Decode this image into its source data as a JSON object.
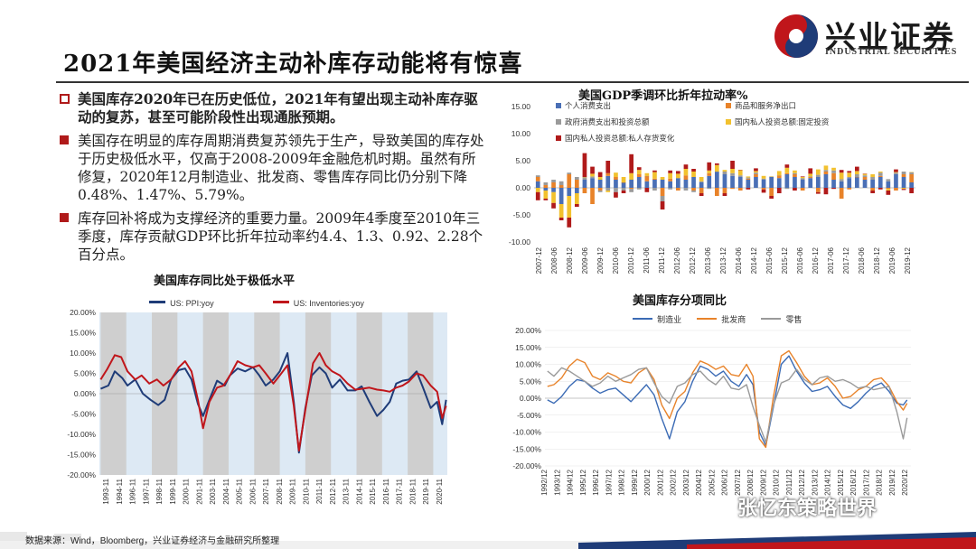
{
  "header": {
    "title": "2021年美国经济主动补库存动能将有惊喜",
    "logo_cn": "兴业证券",
    "logo_en": "INDUSTRIAL SECURITIES"
  },
  "bullets": [
    {
      "text": "美国库存2020年已在历史低位，2021年有望出现主动补库存驱动的复苏，甚至可能阶段性出现通胀预期。"
    },
    {
      "text": "美国存在明显的库存周期消费复苏领先于生产，导致美国的库存处于历史极低水平，仅高于2008-2009年金融危机时期。虽然有所修复，2020年12月制造业、批发商、零售库存同比仍分别下降0.48%、1.47%、5.79%。"
    },
    {
      "text": "库存回补将成为支撑经济的重要力量。2009年4季度至2010年三季度，库存贡献GDP环比折年拉动率约4.4、1.3、0.92、2.28个百分点。"
    }
  ],
  "colors": {
    "accent": "#b01a1a",
    "navy": "#1f3c78",
    "red": "#c0161b"
  },
  "chart_data": [
    {
      "type": "line",
      "title": "美国库存同比处于极低水平",
      "legend": [
        "US: PPI:yoy",
        "US: Inventories:yoy"
      ],
      "y_ticks": [
        "20.00%",
        "15.00%",
        "10.00%",
        "5.00%",
        "0.00%",
        "-5.00%",
        "-10.00%",
        "-15.00%",
        "-20.00%"
      ],
      "ylim": [
        -20,
        20
      ],
      "x_ticks": [
        "1993-11",
        "1994-11",
        "1996-11",
        "1997-11",
        "1998-11",
        "1999-11",
        "2000-11",
        "2001-11",
        "2003-11",
        "2004-11",
        "2005-11",
        "2006-11",
        "2007-11",
        "2008-11",
        "2009-11",
        "2010-11",
        "2011-11",
        "2012-11",
        "2013-11",
        "2014-11",
        "2015-11",
        "2016-11",
        "2017-11",
        "2018-11",
        "2019-11",
        "2020-11"
      ],
      "shaded_periods": [
        [
          1993.9,
          1995.9
        ],
        [
          1997.9,
          1999.9
        ],
        [
          2001.9,
          2003.9
        ],
        [
          2005.9,
          2007.9
        ],
        [
          2009.9,
          2011.9
        ],
        [
          2013.9,
          2015.9
        ],
        [
          2017.9,
          2019.9
        ]
      ],
      "series": [
        {
          "name": "US: PPI:yoy",
          "color": "#1f3c78",
          "x": [
            1993.9,
            1994.5,
            1995.0,
            1995.6,
            1996.0,
            1996.6,
            1997.2,
            1997.8,
            1998.4,
            1998.9,
            1999.4,
            2000.0,
            2000.5,
            2001.0,
            2001.5,
            2001.9,
            2002.4,
            2003.0,
            2003.6,
            2004.0,
            2004.6,
            2005.2,
            2005.8,
            2006.3,
            2006.8,
            2007.4,
            2007.9,
            2008.5,
            2009.0,
            2009.4,
            2009.9,
            2010.4,
            2011.0,
            2011.5,
            2012.0,
            2012.6,
            2013.2,
            2013.8,
            2014.3,
            2014.9,
            2015.5,
            2016.0,
            2016.5,
            2017.0,
            2017.5,
            2018.0,
            2018.6,
            2019.1,
            2019.7,
            2020.2,
            2020.6,
            2020.9
          ],
          "y": [
            1.2,
            2.0,
            5.5,
            3.8,
            2.0,
            3.5,
            0.0,
            -1.5,
            -2.8,
            -1.5,
            3.5,
            5.8,
            6.2,
            3.5,
            -2.5,
            -5.5,
            -1.5,
            3.2,
            2.0,
            4.5,
            6.2,
            5.5,
            6.5,
            4.5,
            2.0,
            3.5,
            5.5,
            10.0,
            -2.0,
            -14.5,
            -3.5,
            4.5,
            6.5,
            5.0,
            1.5,
            3.5,
            0.8,
            0.8,
            1.8,
            -2.0,
            -5.5,
            -4.0,
            -2.0,
            2.5,
            3.2,
            3.5,
            5.5,
            1.5,
            -3.5,
            -2.0,
            -7.5,
            -1.5
          ]
        },
        {
          "name": "US: Inventories:yoy",
          "color": "#c0161b",
          "x": [
            1993.9,
            1994.4,
            1995.0,
            1995.5,
            1996.0,
            1996.6,
            1997.1,
            1997.7,
            1998.3,
            1998.8,
            1999.4,
            2000.0,
            2000.5,
            2001.0,
            2001.5,
            2001.9,
            2002.4,
            2003.0,
            2003.5,
            2004.0,
            2004.6,
            2005.2,
            2005.8,
            2006.3,
            2006.8,
            2007.4,
            2007.9,
            2008.5,
            2009.0,
            2009.4,
            2009.9,
            2010.5,
            2011.0,
            2011.5,
            2012.0,
            2012.6,
            2013.2,
            2013.8,
            2014.3,
            2014.9,
            2015.5,
            2016.0,
            2016.5,
            2017.0,
            2017.5,
            2018.0,
            2018.6,
            2019.1,
            2019.7,
            2020.2,
            2020.6,
            2020.9
          ],
          "y": [
            3.5,
            6.0,
            9.5,
            9.0,
            5.5,
            3.5,
            4.5,
            2.5,
            3.5,
            2.0,
            3.5,
            6.5,
            8.0,
            5.5,
            -1.5,
            -8.5,
            -2.0,
            1.5,
            2.0,
            4.5,
            8.0,
            7.0,
            6.5,
            7.0,
            5.0,
            2.5,
            4.5,
            7.0,
            -3.0,
            -14.0,
            -4.0,
            7.5,
            10.0,
            7.0,
            5.5,
            4.5,
            2.5,
            1.0,
            1.2,
            1.5,
            1.0,
            0.8,
            0.5,
            1.5,
            2.0,
            3.0,
            5.0,
            4.5,
            2.0,
            0.5,
            -6.0,
            -3.0
          ]
        }
      ]
    },
    {
      "type": "bar",
      "title": "美国GDP季调环比折年拉动率%",
      "legend": [
        "个人消费支出",
        "商品和服务净出口",
        "政府消费支出和投资总额",
        "国内私人投资总额:固定投资",
        "国内私人投资总额:私人存货变化"
      ],
      "y_ticks": [
        "15.00",
        "10.00",
        "5.00",
        "0.00",
        "-5.00",
        "-10.00"
      ],
      "ylim": [
        -10,
        15
      ],
      "x_ticks": [
        "2007-12",
        "2008-06",
        "2008-12",
        "2009-06",
        "2009-12",
        "2010-06",
        "2010-12",
        "2011-06",
        "2011-12",
        "2012-06",
        "2012-12",
        "2013-06",
        "2013-12",
        "2014-06",
        "2014-12",
        "2015-06",
        "2015-12",
        "2016-06",
        "2016-12",
        "2017-06",
        "2017-12",
        "2018-06",
        "2018-12",
        "2019-06",
        "2019-12"
      ],
      "series": [
        {
          "name": "个人消费支出",
          "color": "#4a6fb5",
          "values": [
            1.2,
            -0.5,
            -0.8,
            -3.0,
            -1.5,
            -1.0,
            1.5,
            1.8,
            1.5,
            2.2,
            1.5,
            1.0,
            1.5,
            2.0,
            1.2,
            1.5,
            1.5,
            1.2,
            1.8,
            1.5,
            2.0,
            1.0,
            2.2,
            3.0,
            2.5,
            2.2,
            2.0,
            1.5,
            2.0,
            1.5,
            2.0,
            1.8,
            2.5,
            2.0,
            1.5,
            1.8,
            2.0,
            2.5,
            1.5,
            1.2,
            1.8,
            2.0,
            1.5,
            1.5,
            2.0,
            1.2,
            2.5,
            2.0,
            1.0
          ]
        },
        {
          "name": "商品和服务净出口",
          "color": "#e8832a",
          "values": [
            0.8,
            0.5,
            1.0,
            0.5,
            2.5,
            1.5,
            -1.0,
            -3.0,
            -0.5,
            0.5,
            0.5,
            0.0,
            -0.2,
            0.5,
            1.0,
            0.2,
            -1.5,
            0.5,
            -0.5,
            0.8,
            -0.5,
            -1.0,
            0.5,
            -1.5,
            -1.0,
            -0.2,
            -0.5,
            0.2,
            0.5,
            -0.3,
            -1.5,
            0.5,
            0.2,
            0.5,
            -0.5,
            0.2,
            -0.8,
            0.5,
            1.2,
            -2.0,
            -0.3,
            0.0,
            0.5,
            -0.5,
            0.2,
            -0.2,
            -0.5,
            0.5,
            1.5
          ]
        },
        {
          "name": "政府消费支出和投资总额",
          "color": "#9a9a9a",
          "values": [
            0.3,
            0.5,
            0.5,
            0.7,
            0.3,
            0.5,
            0.5,
            0.3,
            -0.3,
            -0.5,
            -0.8,
            -0.5,
            -0.6,
            -0.3,
            0.0,
            -0.5,
            -1.0,
            -0.3,
            0.0,
            -0.5,
            -0.3,
            0.2,
            -0.2,
            0.0,
            0.5,
            0.5,
            0.3,
            0.2,
            0.3,
            0.2,
            0.1,
            0.0,
            -0.2,
            0.2,
            0.3,
            0.1,
            0.4,
            0.3,
            0.5,
            0.4,
            0.2,
            0.5,
            0.3,
            0.5,
            0.6,
            0.4,
            0.3,
            0.5,
            0.4
          ]
        },
        {
          "name": "国内私人投资总额:固定投资",
          "color": "#f2c12e",
          "values": [
            -0.8,
            -1.5,
            -2.0,
            -2.5,
            -4.0,
            -2.0,
            0.0,
            0.5,
            0.5,
            -0.3,
            0.8,
            1.0,
            1.2,
            0.8,
            0.5,
            1.2,
            0.5,
            1.0,
            0.8,
            1.2,
            1.0,
            0.8,
            0.5,
            1.2,
            0.3,
            0.8,
            1.0,
            0.2,
            0.3,
            0.5,
            0.0,
            0.8,
            1.0,
            0.5,
            0.2,
            0.5,
            1.0,
            0.8,
            0.5,
            1.2,
            0.8,
            0.6,
            0.3,
            0.5,
            0.2,
            -0.3,
            0.1,
            -0.2,
            0.0
          ]
        },
        {
          "name": "国内私人投资总额:私人存货变化",
          "color": "#b01a1a",
          "values": [
            -1.5,
            -0.3,
            -1.0,
            -0.5,
            -1.8,
            -0.5,
            4.4,
            1.3,
            0.9,
            2.3,
            -1.0,
            -0.5,
            3.5,
            0.5,
            -0.8,
            0.3,
            -1.5,
            0.5,
            0.5,
            0.8,
            0.5,
            -0.5,
            1.5,
            0.3,
            -0.5,
            1.5,
            0.0,
            -0.3,
            0.5,
            -0.6,
            -0.5,
            -1.0,
            0.6,
            -0.5,
            0.1,
            1.0,
            -0.3,
            -1.2,
            -0.2,
            0.5,
            0.3,
            0.8,
            0.0,
            -0.5,
            -0.3,
            -0.8,
            0.5,
            -0.2,
            -1.0
          ]
        }
      ]
    },
    {
      "type": "line",
      "title": "美国库存分项同比",
      "legend": [
        "制造业",
        "批发商",
        "零售"
      ],
      "y_ticks": [
        "20.00%",
        "15.00%",
        "10.00%",
        "5.00%",
        "0.00%",
        "-5.00%",
        "-10.00%",
        "-15.00%",
        "-20.00%"
      ],
      "ylim": [
        -20,
        20
      ],
      "x_ticks": [
        "1992/12",
        "1993/12",
        "1994/12",
        "1995/12",
        "1996/12",
        "1997/12",
        "1998/12",
        "1999/12",
        "2000/12",
        "2001/12",
        "2002/12",
        "2003/12",
        "2004/12",
        "2005/12",
        "2006/12",
        "2007/12",
        "2008/12",
        "2009/12",
        "2010/12",
        "2011/12",
        "2012/12",
        "2013/12",
        "2014/12",
        "2015/12",
        "2016/12",
        "2017/12",
        "2018/12",
        "2019/12",
        "2020/12"
      ],
      "series": [
        {
          "name": "制造业",
          "color": "#3b6bb5",
          "x": [
            1992.9,
            1993.4,
            1994.0,
            1994.6,
            1995.2,
            1995.8,
            1996.4,
            1997.0,
            1997.6,
            1998.2,
            1998.8,
            1999.4,
            2000.0,
            2000.6,
            2001.2,
            2001.8,
            2002.4,
            2003.0,
            2003.6,
            2004.2,
            2004.8,
            2005.4,
            2006.0,
            2006.6,
            2007.2,
            2007.8,
            2008.4,
            2008.9,
            2009.4,
            2009.9,
            2010.5,
            2011.1,
            2011.7,
            2012.3,
            2012.9,
            2013.5,
            2014.1,
            2014.7,
            2015.3,
            2015.9,
            2016.5,
            2017.1,
            2017.7,
            2018.3,
            2018.9,
            2019.5,
            2020.1,
            2020.6,
            2020.9
          ],
          "y": [
            -0.5,
            -1.5,
            0.5,
            3.5,
            5.5,
            5.0,
            3.0,
            1.5,
            2.5,
            3.0,
            1.0,
            -1.0,
            1.5,
            4.0,
            1.0,
            -6.0,
            -12.0,
            -4.0,
            -1.0,
            5.0,
            9.5,
            8.5,
            6.5,
            8.0,
            5.0,
            3.5,
            7.0,
            4.0,
            -10.0,
            -14.0,
            -2.5,
            10.0,
            12.5,
            8.0,
            4.5,
            2.0,
            2.5,
            3.5,
            0.5,
            -2.0,
            -3.0,
            -1.0,
            1.5,
            3.5,
            4.5,
            2.0,
            -1.5,
            -2.0,
            -0.5
          ]
        },
        {
          "name": "批发商",
          "color": "#e8832a",
          "x": [
            1992.9,
            1993.4,
            1994.0,
            1994.6,
            1995.2,
            1995.8,
            1996.4,
            1997.0,
            1997.6,
            1998.2,
            1998.8,
            1999.4,
            2000.0,
            2000.6,
            2001.2,
            2001.8,
            2002.4,
            2003.0,
            2003.6,
            2004.2,
            2004.8,
            2005.4,
            2006.0,
            2006.6,
            2007.2,
            2007.8,
            2008.4,
            2008.9,
            2009.4,
            2009.9,
            2010.5,
            2011.1,
            2011.7,
            2012.3,
            2012.9,
            2013.5,
            2014.1,
            2014.7,
            2015.3,
            2015.9,
            2016.5,
            2017.1,
            2017.7,
            2018.3,
            2018.9,
            2019.5,
            2020.1,
            2020.6,
            2020.9
          ],
          "y": [
            3.5,
            4.0,
            6.0,
            9.5,
            11.5,
            10.5,
            6.5,
            5.5,
            7.5,
            6.5,
            5.0,
            4.5,
            7.5,
            9.0,
            5.5,
            -2.0,
            -6.0,
            0.0,
            2.0,
            7.5,
            11.0,
            10.0,
            8.5,
            9.5,
            7.0,
            6.5,
            10.0,
            6.5,
            -12.0,
            -14.5,
            0.5,
            12.5,
            14.0,
            10.5,
            6.5,
            4.0,
            4.5,
            6.0,
            3.5,
            0.0,
            0.5,
            2.5,
            3.5,
            5.5,
            6.0,
            3.5,
            -1.0,
            -3.5,
            -1.5
          ]
        },
        {
          "name": "零售",
          "color": "#9a9a9a",
          "x": [
            1992.9,
            1993.4,
            1994.0,
            1994.6,
            1995.2,
            1995.8,
            1996.4,
            1997.0,
            1997.6,
            1998.2,
            1998.8,
            1999.4,
            2000.0,
            2000.6,
            2001.2,
            2001.8,
            2002.4,
            2003.0,
            2003.6,
            2004.2,
            2004.8,
            2005.4,
            2006.0,
            2006.6,
            2007.2,
            2007.8,
            2008.4,
            2008.9,
            2009.4,
            2009.9,
            2010.5,
            2011.1,
            2011.7,
            2012.3,
            2012.9,
            2013.5,
            2014.1,
            2014.7,
            2015.3,
            2015.9,
            2016.5,
            2017.1,
            2017.7,
            2018.3,
            2018.9,
            2019.5,
            2020.1,
            2020.6,
            2020.9
          ],
          "y": [
            8.0,
            6.5,
            9.0,
            8.0,
            6.5,
            5.0,
            3.5,
            4.5,
            6.5,
            5.0,
            6.0,
            7.0,
            8.5,
            9.0,
            4.5,
            0.5,
            -1.5,
            3.5,
            4.5,
            7.0,
            8.0,
            5.5,
            4.0,
            6.5,
            3.0,
            2.5,
            4.0,
            -2.5,
            -8.0,
            -13.0,
            -2.0,
            4.5,
            5.5,
            8.5,
            5.5,
            4.0,
            6.0,
            6.5,
            5.0,
            5.5,
            4.5,
            3.0,
            3.5,
            2.5,
            3.0,
            3.5,
            -4.0,
            -12.0,
            -5.8
          ]
        }
      ]
    }
  ],
  "footer": {
    "source": "数据来源：Wind，Bloomberg，兴业证券经济与金融研究所整理",
    "watermark": "张忆东策略世界"
  }
}
